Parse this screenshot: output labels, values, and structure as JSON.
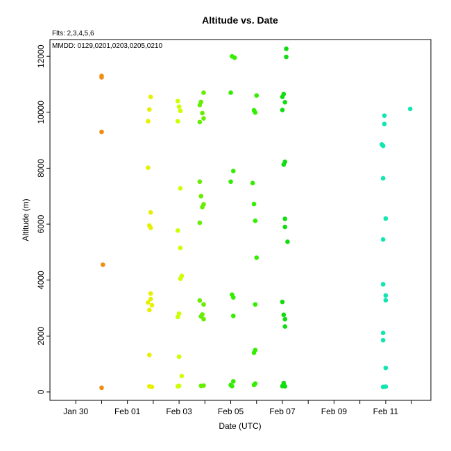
{
  "chart_data": {
    "type": "scatter",
    "title": "Altitude  vs. Date",
    "xlabel": "Date (UTC)",
    "ylabel": "Altitude (m)",
    "annotations": [
      "Flts: 2,3,4,5,6",
      "MMDD: 0129,0201,0203,0205,0210"
    ],
    "x_unit": "date (days, January 30 = 30.0, February 1 = 32.0)",
    "xlim": [
      29.0,
      43.75
    ],
    "ylim": [
      -300,
      12600
    ],
    "x_ticks": [
      {
        "value": 30,
        "label": "Jan 30"
      },
      {
        "value": 31,
        "label": ""
      },
      {
        "value": 32,
        "label": "Feb 01"
      },
      {
        "value": 33,
        "label": ""
      },
      {
        "value": 34,
        "label": "Feb 03"
      },
      {
        "value": 35,
        "label": ""
      },
      {
        "value": 36,
        "label": "Feb 05"
      },
      {
        "value": 37,
        "label": ""
      },
      {
        "value": 38,
        "label": "Feb 07"
      },
      {
        "value": 39,
        "label": ""
      },
      {
        "value": 40,
        "label": "Feb 09"
      },
      {
        "value": 41,
        "label": ""
      },
      {
        "value": 42,
        "label": "Feb 11"
      },
      {
        "value": 43,
        "label": ""
      }
    ],
    "y_ticks": [
      {
        "value": 0,
        "label": "0"
      },
      {
        "value": 2000,
        "label": "2000"
      },
      {
        "value": 4000,
        "label": "4000"
      },
      {
        "value": 6000,
        "label": "6000"
      },
      {
        "value": 8000,
        "label": "8000"
      },
      {
        "value": 10000,
        "label": "10000"
      },
      {
        "value": 12000,
        "label": "12000"
      }
    ],
    "grid": false,
    "series": [
      {
        "color": "#f28c0f",
        "points": [
          [
            31.0,
            11300
          ],
          [
            31.0,
            11250
          ],
          [
            31.0,
            9300
          ],
          [
            31.05,
            4550
          ],
          [
            31.0,
            150
          ]
        ]
      },
      {
        "color": "#e6f000",
        "points": [
          [
            32.9,
            10550
          ],
          [
            32.85,
            10100
          ],
          [
            32.8,
            9680
          ],
          [
            32.8,
            8020
          ],
          [
            32.9,
            6420
          ],
          [
            32.85,
            5950
          ],
          [
            32.9,
            5870
          ],
          [
            32.9,
            3520
          ],
          [
            32.9,
            3320
          ],
          [
            32.8,
            3200
          ],
          [
            32.95,
            3100
          ],
          [
            32.85,
            2930
          ],
          [
            32.85,
            1320
          ],
          [
            32.85,
            200
          ],
          [
            32.95,
            180
          ]
        ]
      },
      {
        "color": "#ccff00",
        "points": [
          [
            33.95,
            10400
          ],
          [
            34.0,
            10200
          ],
          [
            34.05,
            10050
          ],
          [
            33.95,
            9680
          ],
          [
            34.05,
            7280
          ],
          [
            33.95,
            5770
          ],
          [
            34.05,
            5150
          ],
          [
            34.1,
            4150
          ],
          [
            34.05,
            4050
          ],
          [
            34.0,
            2800
          ],
          [
            33.95,
            2680
          ],
          [
            34.0,
            1260
          ],
          [
            34.1,
            570
          ],
          [
            34.0,
            220
          ],
          [
            33.95,
            200
          ]
        ]
      },
      {
        "color": "#66ee00",
        "points": [
          [
            34.95,
            10700
          ],
          [
            34.85,
            10370
          ],
          [
            34.8,
            10260
          ],
          [
            34.9,
            9970
          ],
          [
            34.95,
            9780
          ],
          [
            34.8,
            9650
          ],
          [
            34.8,
            7520
          ],
          [
            34.85,
            7000
          ],
          [
            34.95,
            6710
          ],
          [
            34.9,
            6610
          ],
          [
            34.8,
            6050
          ],
          [
            34.8,
            3270
          ],
          [
            34.95,
            3130
          ],
          [
            34.9,
            2770
          ],
          [
            34.85,
            2700
          ],
          [
            34.95,
            2600
          ],
          [
            34.85,
            220
          ],
          [
            34.95,
            230
          ]
        ]
      },
      {
        "color": "#33ee00",
        "points": [
          [
            36.05,
            12000
          ],
          [
            36.15,
            11950
          ],
          [
            36.0,
            10700
          ],
          [
            36.1,
            7900
          ],
          [
            36.0,
            7520
          ],
          [
            36.05,
            3480
          ],
          [
            36.1,
            3380
          ],
          [
            36.1,
            2720
          ],
          [
            36.1,
            380
          ],
          [
            36.0,
            250
          ],
          [
            36.05,
            210
          ],
          [
            36.85,
            7470
          ],
          [
            36.9,
            6720
          ],
          [
            36.95,
            6120
          ],
          [
            37.0,
            4800
          ],
          [
            37.0,
            10600
          ],
          [
            36.9,
            10070
          ],
          [
            36.95,
            9990
          ],
          [
            36.95,
            3130
          ],
          [
            36.95,
            1500
          ],
          [
            36.9,
            1400
          ],
          [
            36.95,
            300
          ],
          [
            36.9,
            250
          ]
        ]
      },
      {
        "color": "#11dd11",
        "points": [
          [
            38.15,
            12270
          ],
          [
            38.15,
            11980
          ],
          [
            38.05,
            10650
          ],
          [
            38.0,
            10550
          ],
          [
            38.1,
            10360
          ],
          [
            38.0,
            10080
          ],
          [
            38.1,
            8230
          ],
          [
            38.05,
            8130
          ],
          [
            38.1,
            6190
          ],
          [
            38.1,
            5900
          ],
          [
            38.2,
            5370
          ],
          [
            38.0,
            3220
          ],
          [
            38.05,
            2760
          ],
          [
            38.1,
            2600
          ],
          [
            38.1,
            2340
          ],
          [
            38.05,
            320
          ],
          [
            38.0,
            210
          ],
          [
            38.1,
            200
          ]
        ]
      },
      {
        "color": "#11e6b0",
        "points": [
          [
            42.95,
            10120
          ],
          [
            41.95,
            9880
          ],
          [
            41.95,
            9580
          ],
          [
            41.85,
            8850
          ],
          [
            41.9,
            8800
          ],
          [
            41.9,
            7640
          ],
          [
            42.0,
            6200
          ],
          [
            41.9,
            5450
          ],
          [
            41.9,
            3850
          ],
          [
            42.0,
            3450
          ],
          [
            42.0,
            3280
          ],
          [
            41.9,
            2110
          ],
          [
            41.9,
            1850
          ],
          [
            42.0,
            860
          ],
          [
            41.9,
            180
          ],
          [
            42.0,
            190
          ]
        ]
      }
    ]
  }
}
